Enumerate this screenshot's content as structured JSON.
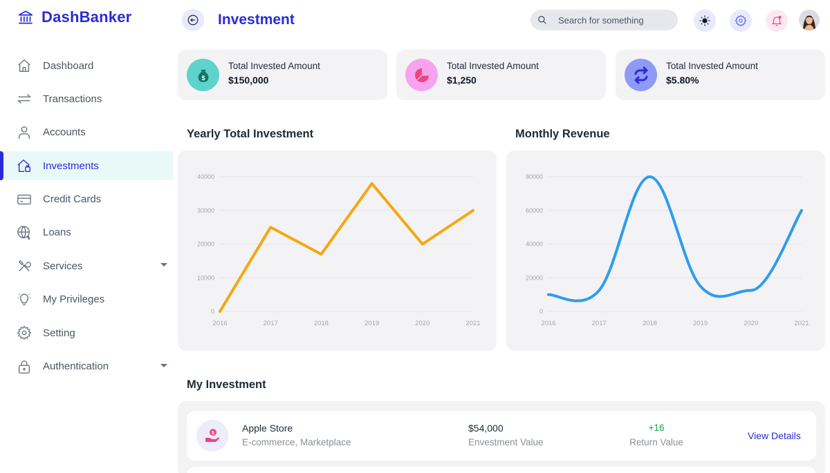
{
  "app": {
    "name": "DashBanker",
    "logo_icon": "bank-icon"
  },
  "sidebar": {
    "items": [
      {
        "label": "Dashboard",
        "icon": "home-icon"
      },
      {
        "label": "Transactions",
        "icon": "swap-arrows-icon"
      },
      {
        "label": "Accounts",
        "icon": "user-icon"
      },
      {
        "label": "Investments",
        "icon": "investment-house-icon",
        "active": true
      },
      {
        "label": "Credit Cards",
        "icon": "credit-card-icon"
      },
      {
        "label": "Loans",
        "icon": "globe-dollar-icon"
      },
      {
        "label": "Services",
        "icon": "tools-icon",
        "has_dropdown": true
      },
      {
        "label": "My Privileges",
        "icon": "lightbulb-icon"
      },
      {
        "label": "Setting",
        "icon": "gear-icon"
      },
      {
        "label": "Authentication",
        "icon": "lock-icon",
        "has_dropdown": true
      }
    ]
  },
  "header": {
    "title": "Investment",
    "search_placeholder": "Search for something",
    "icons": [
      "back-arrow-icon",
      "search-icon",
      "sun-icon",
      "gear-icon",
      "notification-bell-icon",
      "user-avatar"
    ]
  },
  "stats": [
    {
      "label": "Total Invested Amount",
      "value": "$150,000",
      "icon": "money-bag-icon",
      "color": "#5ed3cc"
    },
    {
      "label": "Total Invested Amount",
      "value": "$1,250",
      "icon": "pie-chart-icon",
      "color": "#f8a3f0"
    },
    {
      "label": "Total Invested Amount",
      "value": "$5.80%",
      "icon": "repeat-icon",
      "color": "#8f9af5"
    }
  ],
  "sections": {
    "yearly_title": "Yearly Total Investment",
    "monthly_title": "Monthly Revenue",
    "my_investment_title": "My Investment"
  },
  "chart_data": [
    {
      "type": "line",
      "title": "Yearly Total Investment",
      "x": [
        "2016",
        "2017",
        "2018",
        "2019",
        "2020",
        "2021"
      ],
      "series": [
        {
          "values": [
            0,
            25000,
            17000,
            38000,
            20000,
            30000
          ],
          "color": "#f5a70f"
        }
      ],
      "y_ticks": [
        "0",
        "10000",
        "20000",
        "30000",
        "40000"
      ],
      "ylim": [
        0,
        40000
      ],
      "grid": true,
      "smooth": false
    },
    {
      "type": "line",
      "title": "Monthly Revenue",
      "x": [
        "2016",
        "2017",
        "2018",
        "2019",
        "2020",
        "2021"
      ],
      "series": [
        {
          "values": [
            10000,
            12500,
            80000,
            15000,
            12500,
            60000
          ],
          "color": "#2d9cf0"
        }
      ],
      "y_ticks": [
        "0",
        "20000",
        "40000",
        "60000",
        "80000"
      ],
      "ylim": [
        0,
        80000
      ],
      "grid": true,
      "smooth": true
    }
  ],
  "investments": [
    {
      "name": "Apple Store",
      "category": "E-commerce, Marketplace",
      "value": "$54,000",
      "value_label": "Envestment Value",
      "return": "+16",
      "return_label": "Return Value",
      "action": "View Details",
      "icon": "hand-dollar-icon"
    }
  ]
}
